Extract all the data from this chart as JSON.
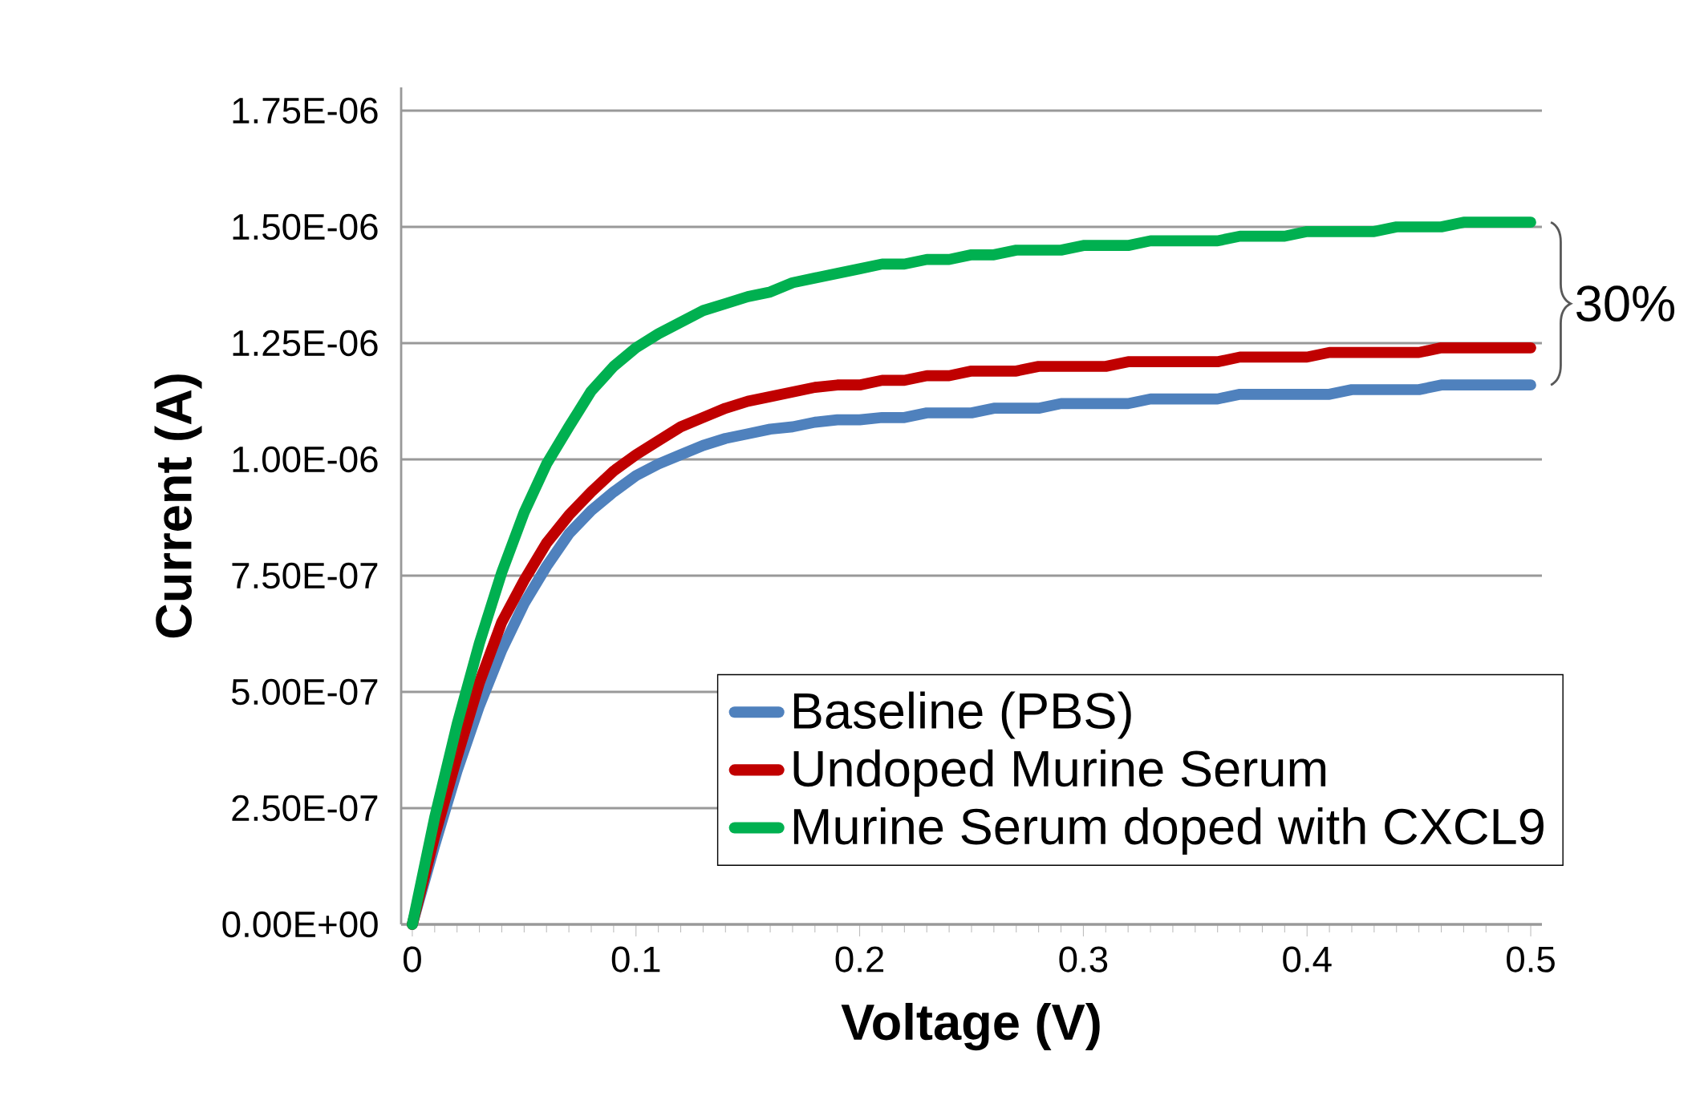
{
  "chart_data": {
    "type": "line",
    "xlabel": "Voltage (V)",
    "ylabel": "Current (A)",
    "x": [
      0,
      0.01,
      0.02,
      0.03,
      0.04,
      0.05,
      0.06,
      0.07,
      0.08,
      0.09,
      0.1,
      0.11,
      0.12,
      0.13,
      0.14,
      0.15,
      0.16,
      0.17,
      0.18,
      0.19,
      0.2,
      0.21,
      0.22,
      0.23,
      0.24,
      0.25,
      0.26,
      0.27,
      0.28,
      0.29,
      0.3,
      0.31,
      0.32,
      0.33,
      0.34,
      0.35,
      0.36,
      0.37,
      0.38,
      0.39,
      0.4,
      0.41,
      0.42,
      0.43,
      0.44,
      0.45,
      0.46,
      0.47,
      0.48,
      0.49,
      0.5
    ],
    "series": [
      {
        "name": "Baseline (PBS)",
        "color": "#4f81bd",
        "values": [
          0,
          1.7e-07,
          3.3e-07,
          4.7e-07,
          5.9e-07,
          6.9e-07,
          7.7e-07,
          8.4e-07,
          8.9e-07,
          9.3e-07,
          9.65e-07,
          9.9e-07,
          1.01e-06,
          1.03e-06,
          1.045e-06,
          1.055e-06,
          1.065e-06,
          1.07e-06,
          1.08e-06,
          1.085e-06,
          1.085e-06,
          1.09e-06,
          1.09e-06,
          1.1e-06,
          1.1e-06,
          1.1e-06,
          1.11e-06,
          1.11e-06,
          1.11e-06,
          1.12e-06,
          1.12e-06,
          1.12e-06,
          1.12e-06,
          1.13e-06,
          1.13e-06,
          1.13e-06,
          1.13e-06,
          1.14e-06,
          1.14e-06,
          1.14e-06,
          1.14e-06,
          1.14e-06,
          1.15e-06,
          1.15e-06,
          1.15e-06,
          1.15e-06,
          1.16e-06,
          1.16e-06,
          1.16e-06,
          1.16e-06,
          1.16e-06
        ]
      },
      {
        "name": "Undoped Murine Serum",
        "color": "#c00000",
        "values": [
          0,
          1.9e-07,
          3.6e-07,
          5.2e-07,
          6.5e-07,
          7.4e-07,
          8.2e-07,
          8.8e-07,
          9.3e-07,
          9.75e-07,
          1.01e-06,
          1.04e-06,
          1.07e-06,
          1.09e-06,
          1.11e-06,
          1.125e-06,
          1.135e-06,
          1.145e-06,
          1.155e-06,
          1.16e-06,
          1.16e-06,
          1.17e-06,
          1.17e-06,
          1.18e-06,
          1.18e-06,
          1.19e-06,
          1.19e-06,
          1.19e-06,
          1.2e-06,
          1.2e-06,
          1.2e-06,
          1.2e-06,
          1.21e-06,
          1.21e-06,
          1.21e-06,
          1.21e-06,
          1.21e-06,
          1.22e-06,
          1.22e-06,
          1.22e-06,
          1.22e-06,
          1.23e-06,
          1.23e-06,
          1.23e-06,
          1.23e-06,
          1.23e-06,
          1.24e-06,
          1.24e-06,
          1.24e-06,
          1.24e-06,
          1.24e-06
        ]
      },
      {
        "name": "Murine Serum doped with CXCL9",
        "color": "#00b050",
        "values": [
          0,
          2.3e-07,
          4.3e-07,
          6.05e-07,
          7.57e-07,
          8.86e-07,
          9.9e-07,
          1.07e-06,
          1.147e-06,
          1.2e-06,
          1.24e-06,
          1.27e-06,
          1.295e-06,
          1.32e-06,
          1.335e-06,
          1.35e-06,
          1.36e-06,
          1.38e-06,
          1.39e-06,
          1.4e-06,
          1.41e-06,
          1.42e-06,
          1.42e-06,
          1.43e-06,
          1.43e-06,
          1.44e-06,
          1.44e-06,
          1.45e-06,
          1.45e-06,
          1.45e-06,
          1.46e-06,
          1.46e-06,
          1.46e-06,
          1.47e-06,
          1.47e-06,
          1.47e-06,
          1.47e-06,
          1.48e-06,
          1.48e-06,
          1.48e-06,
          1.49e-06,
          1.49e-06,
          1.49e-06,
          1.49e-06,
          1.5e-06,
          1.5e-06,
          1.5e-06,
          1.51e-06,
          1.51e-06,
          1.51e-06,
          1.51e-06
        ]
      }
    ],
    "xlim": [
      -0.005,
      0.505
    ],
    "xticks": [
      0,
      0.1,
      0.2,
      0.3,
      0.4,
      0.5
    ],
    "ylim": [
      0,
      1.8e-06
    ],
    "yticks": [
      {
        "value": 0,
        "label": "0.00E+00"
      },
      {
        "value": 2.5e-07,
        "label": "2.50E-07"
      },
      {
        "value": 5e-07,
        "label": "5.00E-07"
      },
      {
        "value": 7.5e-07,
        "label": "7.50E-07"
      },
      {
        "value": 1e-06,
        "label": "1.00E-06"
      },
      {
        "value": 1.25e-06,
        "label": "1.25E-06"
      },
      {
        "value": 1.5e-06,
        "label": "1.50E-06"
      },
      {
        "value": 1.75e-06,
        "label": "1.75E-06"
      }
    ],
    "grid": "y",
    "legend": "bottom right",
    "marker": "none",
    "line_style": "solid",
    "annotations": [
      "30%"
    ]
  }
}
